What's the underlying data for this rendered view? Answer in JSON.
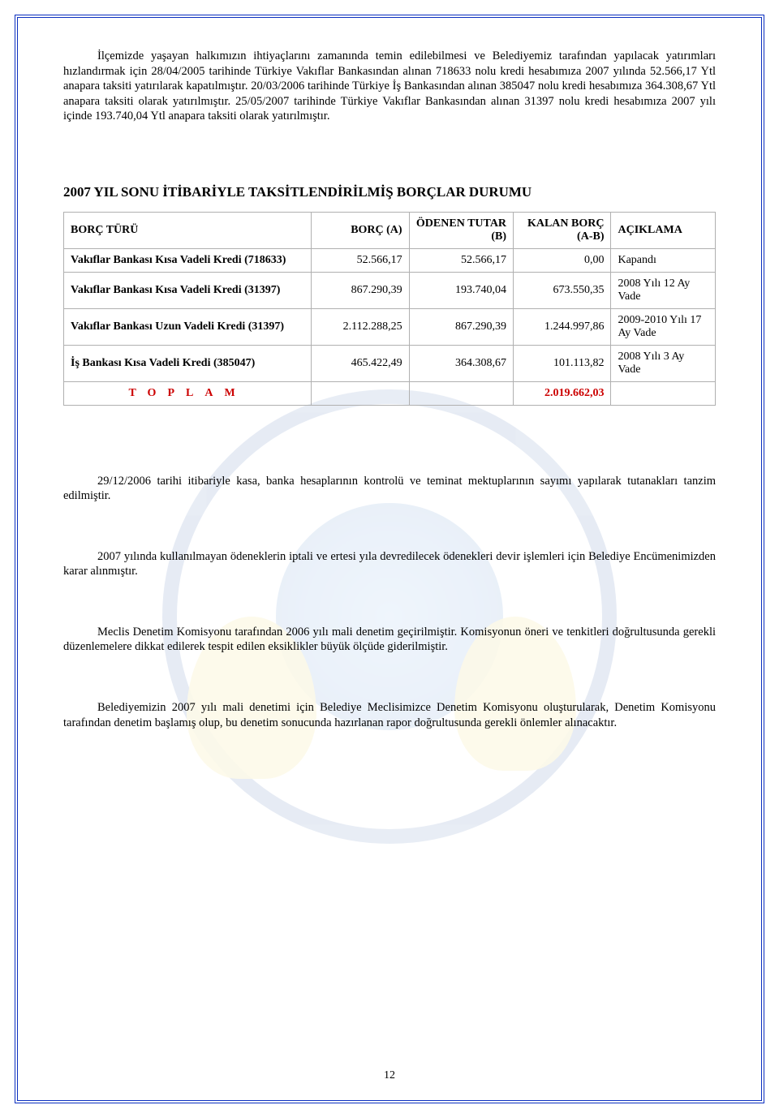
{
  "paragraphs": {
    "p1": "İlçemizde yaşayan halkımızın ihtiyaçlarını zamanında temin edilebilmesi ve Belediyemiz tarafından yapılacak yatırımları hızlandırmak için 28/04/2005 tarihinde Türkiye Vakıflar Bankasından alınan 718633 nolu kredi hesabımıza 2007 yılında 52.566,17 Ytl anapara taksiti yatırılarak kapatılmıştır. 20/03/2006 tarihinde Türkiye İş Bankasından alınan 385047 nolu kredi hesabımıza 364.308,67 Ytl anapara taksiti olarak yatırılmıştır. 25/05/2007 tarihinde Türkiye Vakıflar Bankasından alınan 31397 nolu kredi hesabımıza 2007 yılı içinde 193.740,04 Ytl anapara taksiti olarak yatırılmıştır.",
    "p2": "29/12/2006 tarihi itibariyle kasa, banka hesaplarının kontrolü ve teminat mektuplarının sayımı yapılarak tutanakları tanzim edilmiştir.",
    "p3": "2007 yılında kullanılmayan ödeneklerin iptali ve ertesi yıla devredilecek ödenekleri devir işlemleri için Belediye Encümenimizden karar alınmıştır.",
    "p4": "Meclis Denetim Komisyonu tarafından 2006 yılı mali denetim geçirilmiştir. Komisyonun öneri ve tenkitleri doğrultusunda gerekli düzenlemelere dikkat edilerek  tespit edilen eksiklikler büyük ölçüde giderilmiştir.",
    "p5": "Belediyemizin 2007 yılı mali denetimi için Belediye Meclisimizce Denetim Komisyonu oluşturularak, Denetim Komisyonu tarafından denetim başlamış olup, bu denetim sonucunda hazırlanan rapor doğrultusunda gerekli önlemler alınacaktır."
  },
  "section_title": "2007 YIL SONU İTİBARİYLE TAKSİTLENDİRİLMİŞ BORÇLAR DURUMU",
  "table": {
    "headers": {
      "c0": "BORÇ TÜRÜ",
      "c1": "BORÇ (A)",
      "c2": "ÖDENEN TUTAR (B)",
      "c3": "KALAN BORÇ (A-B)",
      "c4": "AÇIKLAMA"
    },
    "rows": [
      {
        "c0": "Vakıflar Bankası Kısa Vadeli Kredi (718633)",
        "c1": "52.566,17",
        "c2": "52.566,17",
        "c3": "0,00",
        "c4": "Kapandı"
      },
      {
        "c0": "Vakıflar Bankası Kısa Vadeli Kredi (31397)",
        "c1": "867.290,39",
        "c2": "193.740,04",
        "c3": "673.550,35",
        "c4": "2008 Yılı 12 Ay Vade"
      },
      {
        "c0": "Vakıflar Bankası Uzun Vadeli Kredi (31397)",
        "c1": "2.112.288,25",
        "c2": "867.290,39",
        "c3": "1.244.997,86",
        "c4": "2009-2010 Yılı 17 Ay Vade"
      },
      {
        "c0": "İş Bankası Kısa Vadeli Kredi (385047)",
        "c1": "465.422,49",
        "c2": "364.308,67",
        "c3": "101.113,82",
        "c4": "2008 Yılı 3 Ay Vade"
      }
    ],
    "total": {
      "label": "TOPLAM",
      "value": "2.019.662,03"
    }
  },
  "page_number": "12"
}
